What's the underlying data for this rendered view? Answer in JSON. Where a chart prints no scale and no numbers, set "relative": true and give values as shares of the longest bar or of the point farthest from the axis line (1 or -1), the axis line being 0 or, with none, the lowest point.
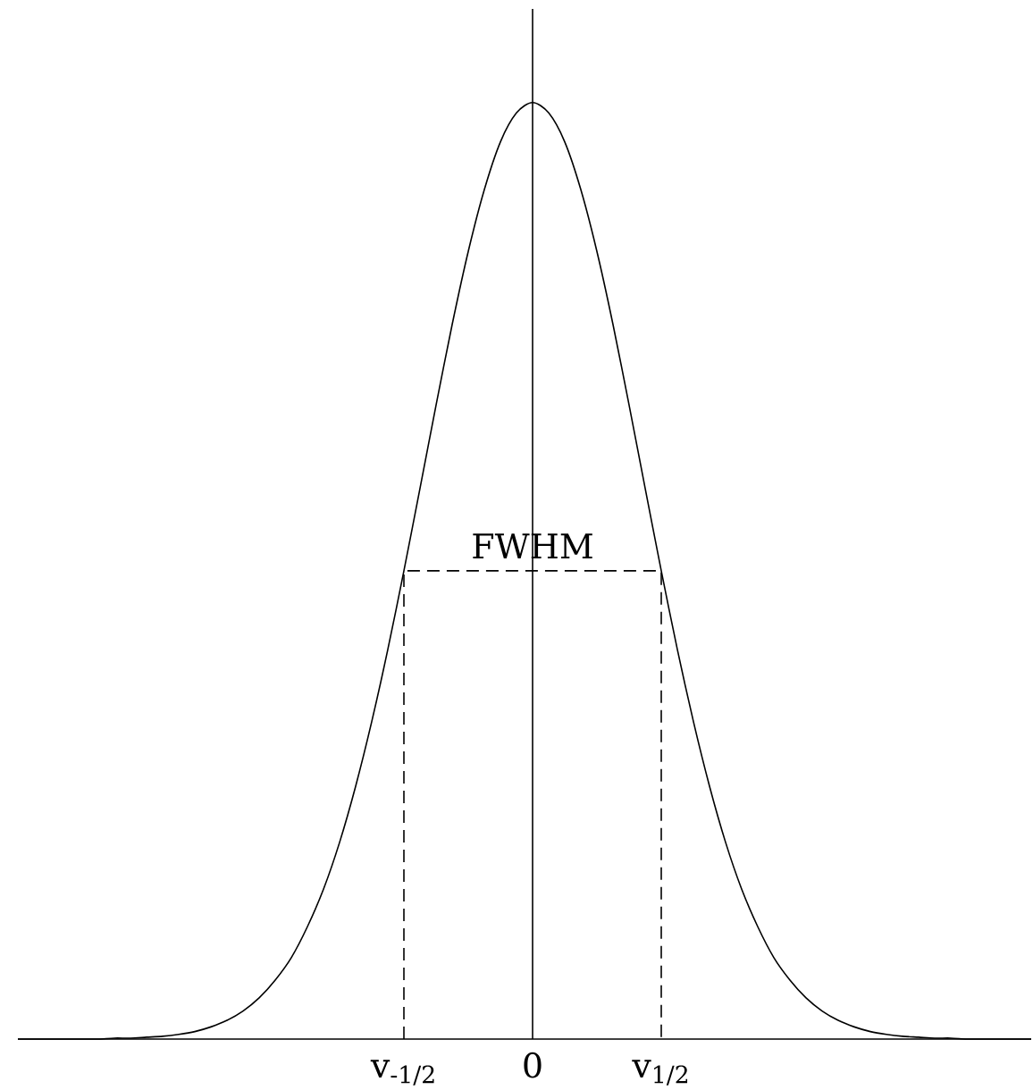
{
  "chart_data": {
    "type": "line",
    "relative": true,
    "marker": "none",
    "tick_labels": "x",
    "categories": [
      null,
      null,
      null,
      null,
      null,
      null,
      null,
      null,
      null,
      null,
      null,
      null,
      null,
      null,
      null,
      null,
      null,
      null,
      null,
      null,
      null,
      null,
      null,
      null,
      "v$_{-1/2}$",
      null,
      null,
      null,
      null,
      null,
      null,
      null,
      "0",
      null,
      null,
      null,
      null,
      null,
      null,
      null,
      "v$_{1/2}$",
      null,
      null,
      null,
      null,
      null,
      null,
      null,
      null,
      null,
      null,
      null,
      null,
      null,
      null,
      null,
      null,
      null,
      null,
      null,
      null,
      null,
      null,
      null
    ],
    "series": [
      {
        "color": "#000000",
        "line_style": "solid",
        "values": [
          0,
          0,
          0,
          0,
          0,
          0,
          0.001,
          0.001,
          0.002,
          0.003,
          0.005,
          0.008,
          0.013,
          0.02,
          0.03,
          0.044,
          0.063,
          0.087,
          0.12,
          0.16,
          0.21,
          0.27,
          0.339,
          0.416,
          0.5,
          0.588,
          0.677,
          0.763,
          0.841,
          0.907,
          0.958,
          0.989,
          1,
          0.989,
          0.958,
          0.907,
          0.841,
          0.763,
          0.677,
          0.588,
          0.5,
          0.416,
          0.339,
          0.27,
          0.21,
          0.16,
          0.12,
          0.087,
          0.063,
          0.044,
          0.03,
          0.02,
          0.013,
          0.008,
          0.005,
          0.003,
          0.002,
          0.001,
          0.001,
          0,
          0,
          0,
          0,
          0
        ]
      },
      {
        "color": "#000000",
        "line_style": "dashed",
        "x": [
          "v$_{-1/2}$",
          "v$_{-1/2}$",
          "v$_{1/2}$",
          "v$_{1/2}$"
        ],
        "values": [
          0,
          0.5,
          0.5,
          0
        ]
      }
    ],
    "ref_lines": [
      {
        "axis": "x",
        "value": "0",
        "color": "#000000",
        "line_style": "solid"
      }
    ],
    "annotations": [
      {
        "text": "FWHM",
        "x": "0",
        "y": 0.5
      }
    ]
  }
}
